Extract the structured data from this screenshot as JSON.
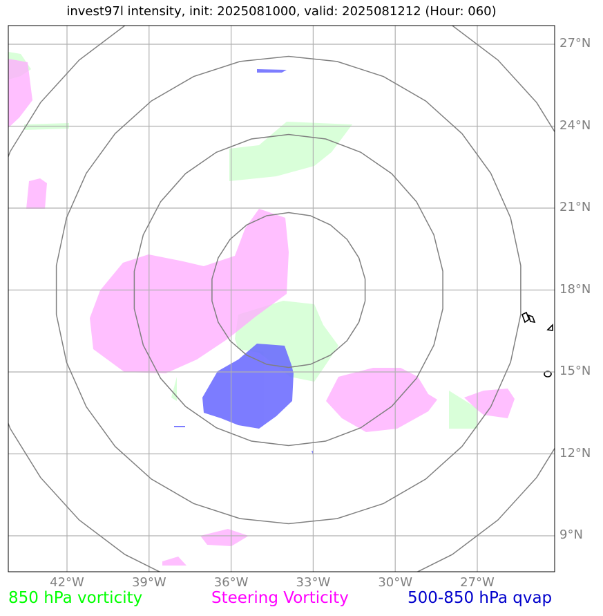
{
  "title": "invest97l intensity, init: 2025081000, valid: 2025081212 (Hour: 060)",
  "grid": {
    "latitudes": [
      {
        "value": 27,
        "label": "27°N"
      },
      {
        "value": 24,
        "label": "24°N"
      },
      {
        "value": 21,
        "label": "21°N"
      },
      {
        "value": 18,
        "label": "18°N"
      },
      {
        "value": 15,
        "label": "15°N"
      },
      {
        "value": 12,
        "label": "12°N"
      },
      {
        "value": 9,
        "label": "9°N"
      }
    ],
    "longitudes": [
      {
        "value": -42,
        "label": "42°W"
      },
      {
        "value": -39,
        "label": "39°W"
      },
      {
        "value": -36,
        "label": "36°W"
      },
      {
        "value": -33,
        "label": "33°W"
      },
      {
        "value": -30,
        "label": "30°W"
      },
      {
        "value": -27,
        "label": "27°W"
      }
    ],
    "grid_color": "#b0b0b0"
  },
  "range_rings": {
    "center": {
      "lon": -33.9,
      "lat": 18.0
    },
    "color": "#808080"
  },
  "legend": [
    {
      "label": "850 hPa vorticity",
      "color": "#00ff00"
    },
    {
      "label": "Steering Vorticity",
      "color": "#ff00ff"
    },
    {
      "label": "500-850 hPa qvap",
      "color": "#0000cc"
    }
  ],
  "fields": {
    "vort850_color": "#ccffcc",
    "steering_color": "#ffaaff",
    "qvap_color": "#6666ff"
  }
}
